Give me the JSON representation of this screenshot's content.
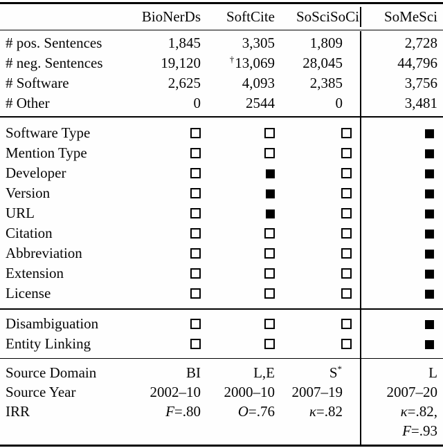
{
  "header": {
    "dataset1": "BioNerDs",
    "dataset2": "SoftCite",
    "dataset3": "SoSciSoCi",
    "dataset4": "SoMeSci"
  },
  "counts": {
    "rows": [
      {
        "label": "# pos. Sentences",
        "bionerds": "1,845",
        "softcite": "3,305",
        "soscisoci": "1,809",
        "somesci": "2,728"
      },
      {
        "label": "# neg. Sentences",
        "bionerds": "19,120",
        "softcite_note": "†",
        "softcite": "13,069",
        "soscisoci": "28,045",
        "somesci": "44,796"
      },
      {
        "label": "# Software",
        "bionerds": "2,625",
        "softcite": "4,093",
        "soscisoci": "2,385",
        "somesci": "3,756"
      },
      {
        "label": "# Other",
        "bionerds": "0",
        "softcite": "2544",
        "soscisoci": "0",
        "somesci": "3,481"
      }
    ]
  },
  "features": {
    "rows": [
      {
        "label": "Software Type",
        "bionerds": "empty",
        "softcite": "empty",
        "soscisoci": "empty",
        "somesci": "filled"
      },
      {
        "label": "Mention Type",
        "bionerds": "empty",
        "softcite": "empty",
        "soscisoci": "empty",
        "somesci": "filled"
      },
      {
        "label": "Developer",
        "bionerds": "empty",
        "softcite": "filled",
        "soscisoci": "empty",
        "somesci": "filled"
      },
      {
        "label": "Version",
        "bionerds": "empty",
        "softcite": "filled",
        "soscisoci": "empty",
        "somesci": "filled"
      },
      {
        "label": "URL",
        "bionerds": "empty",
        "softcite": "filled",
        "soscisoci": "empty",
        "somesci": "filled"
      },
      {
        "label": "Citation",
        "bionerds": "empty",
        "softcite": "empty",
        "soscisoci": "empty",
        "somesci": "filled"
      },
      {
        "label": "Abbreviation",
        "bionerds": "empty",
        "softcite": "empty",
        "soscisoci": "empty",
        "somesci": "filled"
      },
      {
        "label": "Extension",
        "bionerds": "empty",
        "softcite": "empty",
        "soscisoci": "empty",
        "somesci": "filled"
      },
      {
        "label": "License",
        "bionerds": "empty",
        "softcite": "empty",
        "soscisoci": "empty",
        "somesci": "filled"
      }
    ]
  },
  "linking": {
    "rows": [
      {
        "label": "Disambiguation",
        "bionerds": "empty",
        "softcite": "empty",
        "soscisoci": "empty",
        "somesci": "filled"
      },
      {
        "label": "Entity Linking",
        "bionerds": "empty",
        "softcite": "empty",
        "soscisoci": "empty",
        "somesci": "filled"
      }
    ]
  },
  "meta": {
    "rows": [
      {
        "label": "Source Domain",
        "bionerds": "BI",
        "softcite": "L,E",
        "soscisoci": "S",
        "soscisoci_sup": "*",
        "somesci": "L"
      },
      {
        "label": "Source Year",
        "bionerds": "2002–10",
        "softcite": "2000–10",
        "soscisoci": "2007–19",
        "somesci": "2007–20"
      },
      {
        "label": "IRR",
        "bionerds_metric": "F",
        "bionerds": "=.80",
        "softcite_metric": "O",
        "softcite": "=.76",
        "soscisoci_metric": "κ",
        "soscisoci": "=.82",
        "somesci_metric": "κ",
        "somesci": "=.82,",
        "somesci_cont_metric": "F",
        "somesci_cont": "=.93"
      }
    ]
  }
}
